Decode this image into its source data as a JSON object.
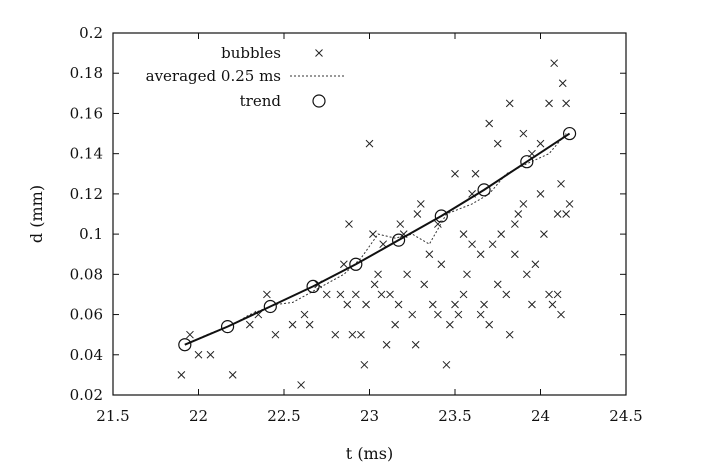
{
  "chart_data": {
    "type": "scatter",
    "title": "",
    "xlabel": "t (ms)",
    "ylabel": "d (mm)",
    "xlim": [
      21.5,
      24.5
    ],
    "ylim": [
      0.02,
      0.2
    ],
    "xticks": [
      "21.5",
      "22",
      "22.5",
      "23",
      "23.5",
      "24",
      "24.5"
    ],
    "yticks": [
      "0.02",
      "0.04",
      "0.06",
      "0.08",
      "0.1",
      "0.12",
      "0.14",
      "0.16",
      "0.18",
      "0.2"
    ],
    "legend": {
      "position": "top-left",
      "entries": [
        "bubbles",
        "averaged 0.25 ms",
        "trend"
      ]
    },
    "series": [
      {
        "name": "bubbles",
        "marker": "x",
        "points": [
          [
            21.9,
            0.03
          ],
          [
            21.95,
            0.05
          ],
          [
            22.0,
            0.04
          ],
          [
            22.07,
            0.04
          ],
          [
            22.2,
            0.03
          ],
          [
            22.3,
            0.055
          ],
          [
            22.35,
            0.06
          ],
          [
            22.4,
            0.07
          ],
          [
            22.45,
            0.05
          ],
          [
            22.55,
            0.055
          ],
          [
            22.6,
            0.025
          ],
          [
            22.62,
            0.06
          ],
          [
            22.65,
            0.055
          ],
          [
            22.7,
            0.075
          ],
          [
            22.75,
            0.07
          ],
          [
            22.8,
            0.05
          ],
          [
            22.83,
            0.07
          ],
          [
            22.85,
            0.085
          ],
          [
            22.87,
            0.065
          ],
          [
            22.88,
            0.105
          ],
          [
            22.9,
            0.05
          ],
          [
            22.92,
            0.07
          ],
          [
            22.95,
            0.05
          ],
          [
            22.97,
            0.035
          ],
          [
            22.98,
            0.065
          ],
          [
            23.0,
            0.145
          ],
          [
            23.02,
            0.1
          ],
          [
            23.03,
            0.075
          ],
          [
            23.05,
            0.08
          ],
          [
            23.07,
            0.07
          ],
          [
            23.08,
            0.095
          ],
          [
            23.1,
            0.045
          ],
          [
            23.12,
            0.07
          ],
          [
            23.15,
            0.055
          ],
          [
            23.17,
            0.065
          ],
          [
            23.18,
            0.105
          ],
          [
            23.2,
            0.1
          ],
          [
            23.22,
            0.08
          ],
          [
            23.25,
            0.06
          ],
          [
            23.27,
            0.045
          ],
          [
            23.28,
            0.11
          ],
          [
            23.3,
            0.115
          ],
          [
            23.32,
            0.075
          ],
          [
            23.35,
            0.09
          ],
          [
            23.37,
            0.065
          ],
          [
            23.4,
            0.06
          ],
          [
            23.42,
            0.085
          ],
          [
            23.45,
            0.035
          ],
          [
            23.47,
            0.055
          ],
          [
            23.5,
            0.065
          ],
          [
            23.52,
            0.06
          ],
          [
            23.55,
            0.07
          ],
          [
            23.57,
            0.08
          ],
          [
            23.6,
            0.095
          ],
          [
            23.62,
            0.13
          ],
          [
            23.65,
            0.06
          ],
          [
            23.67,
            0.065
          ],
          [
            23.7,
            0.055
          ],
          [
            23.72,
            0.095
          ],
          [
            23.75,
            0.075
          ],
          [
            23.77,
            0.1
          ],
          [
            23.8,
            0.07
          ],
          [
            23.82,
            0.05
          ],
          [
            23.85,
            0.09
          ],
          [
            23.87,
            0.11
          ],
          [
            23.9,
            0.115
          ],
          [
            23.92,
            0.08
          ],
          [
            23.95,
            0.065
          ],
          [
            23.97,
            0.085
          ],
          [
            24.0,
            0.12
          ],
          [
            24.02,
            0.1
          ],
          [
            24.05,
            0.07
          ],
          [
            24.07,
            0.065
          ],
          [
            24.1,
            0.07
          ],
          [
            24.12,
            0.06
          ],
          [
            23.7,
            0.155
          ],
          [
            23.82,
            0.165
          ],
          [
            23.9,
            0.15
          ],
          [
            24.0,
            0.145
          ],
          [
            24.05,
            0.165
          ],
          [
            24.08,
            0.185
          ],
          [
            24.13,
            0.175
          ],
          [
            24.15,
            0.165
          ],
          [
            24.12,
            0.125
          ],
          [
            24.17,
            0.115
          ],
          [
            24.1,
            0.11
          ],
          [
            24.15,
            0.11
          ],
          [
            23.95,
            0.14
          ],
          [
            23.75,
            0.145
          ],
          [
            23.6,
            0.12
          ],
          [
            23.55,
            0.1
          ],
          [
            23.85,
            0.105
          ],
          [
            23.5,
            0.13
          ],
          [
            23.4,
            0.105
          ],
          [
            23.65,
            0.09
          ]
        ]
      },
      {
        "name": "averaged 0.25 ms",
        "style": "dotted",
        "points": [
          [
            21.92,
            0.045
          ],
          [
            22.05,
            0.05
          ],
          [
            22.2,
            0.055
          ],
          [
            22.3,
            0.06
          ],
          [
            22.45,
            0.065
          ],
          [
            22.55,
            0.066
          ],
          [
            22.7,
            0.073
          ],
          [
            22.85,
            0.08
          ],
          [
            22.95,
            0.088
          ],
          [
            23.05,
            0.1
          ],
          [
            23.15,
            0.098
          ],
          [
            23.25,
            0.1
          ],
          [
            23.35,
            0.095
          ],
          [
            23.45,
            0.11
          ],
          [
            23.6,
            0.115
          ],
          [
            23.7,
            0.12
          ],
          [
            23.8,
            0.13
          ],
          [
            23.92,
            0.135
          ],
          [
            24.05,
            0.14
          ],
          [
            24.15,
            0.15
          ]
        ]
      },
      {
        "name": "trend",
        "marker": "circle",
        "points": [
          [
            21.92,
            0.045
          ],
          [
            22.17,
            0.054
          ],
          [
            22.42,
            0.064
          ],
          [
            22.67,
            0.074
          ],
          [
            22.92,
            0.085
          ],
          [
            23.17,
            0.097
          ],
          [
            23.42,
            0.109
          ],
          [
            23.67,
            0.122
          ],
          [
            23.92,
            0.136
          ],
          [
            24.17,
            0.15
          ]
        ]
      }
    ]
  }
}
